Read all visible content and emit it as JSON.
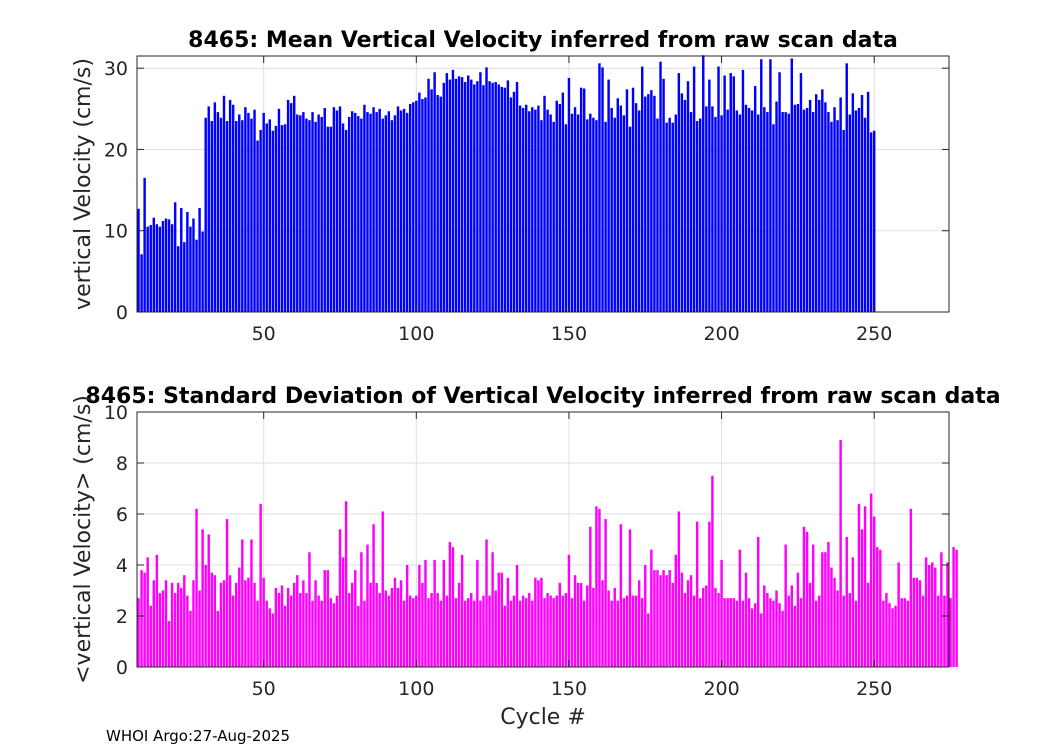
{
  "footer": "WHOI Argo:27-Aug-2025",
  "colors": {
    "mean_bar": "#0000ff",
    "std_bar": "#ff00ff",
    "grid": "#dfdfdf",
    "axis": "#262626"
  },
  "chart_data": [
    {
      "type": "bar",
      "title": "8465: Mean Vertical Velocity inferred from raw scan data",
      "xlabel": "",
      "ylabel": "vertical Velocity (cm/s)",
      "xlim": [
        8.5,
        274.5
      ],
      "ylim": [
        0,
        31.5
      ],
      "xticks": [
        50,
        100,
        150,
        200,
        250
      ],
      "yticks": [
        0,
        10,
        20,
        30
      ],
      "grid": true,
      "x_start": 9,
      "values": [
        12.7,
        7.1,
        16.5,
        10.5,
        10.7,
        11.6,
        10.8,
        10.5,
        11.2,
        11.5,
        11.4,
        10.8,
        13.5,
        8.1,
        12.8,
        8.6,
        12.3,
        10.5,
        11.5,
        8.9,
        12.8,
        9.9,
        23.9,
        25.3,
        23.5,
        25.8,
        24.6,
        23.9,
        26.6,
        23.5,
        26.1,
        25.5,
        23.5,
        24.3,
        23.6,
        25.2,
        24.5,
        23.8,
        24.9,
        21.1,
        22.4,
        24.5,
        23.2,
        23.7,
        22.3,
        22.9,
        25.0,
        23.0,
        23.1,
        26.1,
        25.7,
        26.6,
        24.3,
        24.2,
        24.6,
        23.8,
        23.6,
        24.6,
        23.4,
        24.3,
        24.0,
        25.1,
        22.8,
        22.8,
        25.2,
        24.8,
        25.3,
        23.2,
        22.4,
        24.0,
        24.7,
        24.5,
        24.1,
        23.8,
        25.5,
        24.6,
        24.4,
        25.2,
        24.6,
        25.0,
        23.8,
        24.2,
        24.7,
        23.6,
        24.2,
        25.3,
        24.8,
        25.0,
        24.5,
        25.6,
        25.8,
        26.0,
        27.0,
        26.2,
        26.4,
        28.7,
        27.4,
        29.5,
        26.7,
        26.5,
        28.2,
        29.4,
        28.6,
        29.8,
        28.7,
        29.0,
        28.9,
        28.3,
        29.1,
        28.6,
        28.0,
        28.4,
        29.5,
        27.9,
        30.1,
        28.4,
        28.2,
        28.3,
        28.0,
        27.7,
        27.6,
        28.5,
        26.4,
        27.1,
        28.3,
        25.4,
        25.1,
        25.5,
        24.7,
        25.2,
        24.9,
        25.4,
        23.6,
        26.6,
        24.9,
        24.3,
        23.4,
        26.0,
        25.6,
        27.0,
        23.1,
        28.8,
        24.4,
        25.2,
        24.3,
        27.6,
        27.5,
        23.7,
        24.4,
        23.9,
        23.6,
        30.6,
        30.1,
        23.4,
        28.6,
        25.1,
        23.9,
        26.3,
        25.4,
        24.2,
        27.4,
        22.8,
        27.6,
        25.7,
        24.8,
        30.2,
        26.5,
        26.8,
        27.3,
        26.6,
        23.8,
        30.8,
        28.7,
        23.3,
        23.9,
        23.3,
        24.3,
        29.4,
        26.9,
        26.1,
        28.4,
        24.6,
        30.2,
        23.5,
        23.8,
        31.6,
        25.3,
        28.6,
        25.3,
        24.0,
        30.2,
        24.2,
        29.1,
        24.9,
        29.4,
        29.0,
        24.8,
        24.3,
        29.8,
        25.5,
        25.1,
        24.8,
        27.8,
        24.3,
        31.1,
        25.2,
        24.6,
        31.1,
        23.1,
        25.9,
        29.5,
        24.6,
        24.6,
        24.4,
        31.2,
        25.5,
        25.6,
        29.4,
        24.9,
        25.1,
        26.1,
        24.6,
        26.8,
        26.1,
        27.4,
        25.8,
        24.6,
        23.4,
        25.2,
        23.6,
        26.4,
        22.4,
        30.6,
        24.3,
        26.9,
        24.8,
        25.1,
        26.7,
        23.9,
        27.1,
        22.1,
        22.3
      ]
    },
    {
      "type": "bar",
      "title": "8465: Standard Deviation of Vertical Velocity inferred from raw scan data",
      "xlabel": "Cycle #",
      "ylabel": "<vertical Velocity> (cm/s)",
      "xlim": [
        8.5,
        274.5
      ],
      "ylim": [
        0,
        10
      ],
      "xticks": [
        50,
        100,
        150,
        200,
        250
      ],
      "yticks": [
        0,
        2,
        4,
        6,
        8,
        10
      ],
      "grid": true,
      "x_start": 9,
      "values": [
        2.7,
        3.8,
        3.7,
        4.3,
        2.4,
        3.4,
        4.4,
        2.9,
        3.0,
        3.4,
        1.8,
        3.3,
        2.9,
        3.3,
        3.1,
        3.6,
        2.8,
        2.2,
        3.4,
        6.2,
        3.0,
        5.4,
        4.0,
        5.2,
        3.7,
        3.6,
        2.2,
        3.3,
        3.4,
        5.8,
        3.6,
        2.8,
        3.3,
        3.9,
        5.0,
        3.4,
        3.5,
        5.0,
        3.3,
        2.6,
        6.4,
        3.5,
        2.6,
        2.3,
        2.1,
        3.1,
        2.9,
        3.2,
        2.4,
        3.1,
        2.8,
        3.3,
        3.6,
        2.9,
        3.4,
        2.9,
        4.5,
        2.6,
        3.4,
        2.8,
        2.6,
        3.8,
        3.8,
        2.7,
        2.5,
        2.8,
        5.4,
        4.3,
        6.5,
        2.9,
        3.3,
        3.8,
        2.4,
        4.5,
        2.6,
        4.8,
        3.3,
        5.6,
        3.3,
        2.9,
        6.1,
        3.0,
        2.8,
        3.1,
        3.5,
        3.1,
        3.4,
        2.6,
        4.0,
        2.8,
        2.7,
        2.8,
        4.0,
        3.3,
        4.2,
        2.7,
        2.9,
        4.2,
        2.9,
        2.6,
        4.2,
        2.8,
        4.9,
        4.7,
        2.7,
        3.3,
        4.4,
        2.6,
        2.7,
        2.9,
        2.6,
        4.2,
        2.6,
        2.8,
        5.0,
        2.8,
        4.5,
        3.0,
        3.7,
        3.7,
        2.4,
        3.5,
        2.6,
        2.8,
        4.0,
        2.6,
        2.8,
        2.7,
        2.9,
        2.6,
        3.5,
        3.4,
        3.5,
        2.7,
        2.9,
        2.8,
        2.7,
        2.8,
        3.3,
        2.8,
        2.9,
        4.4,
        2.7,
        3.6,
        3.3,
        3.3,
        2.6,
        3.2,
        5.5,
        3.1,
        6.3,
        6.2,
        3.4,
        5.8,
        3.0,
        2.6,
        3.1,
        2.6,
        5.6,
        2.7,
        2.8,
        5.4,
        2.8,
        2.8,
        3.4,
        2.7,
        4.0,
        2.1,
        4.6,
        3.8,
        3.8,
        3.6,
        3.8,
        3.6,
        3.8,
        3.3,
        4.4,
        6.1,
        3.7,
        2.9,
        3.4,
        3.6,
        2.8,
        5.7,
        2.7,
        3.1,
        3.2,
        5.7,
        7.5,
        3.1,
        2.9,
        4.2,
        2.7,
        2.7,
        2.7,
        2.7,
        2.6,
        4.6,
        2.6,
        3.7,
        2.7,
        2.3,
        2.5,
        5.1,
        2.1,
        3.2,
        2.9,
        2.7,
        2.6,
        3.0,
        2.5,
        2.2,
        4.8,
        2.8,
        3.2,
        2.4,
        3.7,
        2.7,
        5.5,
        5.3,
        3.3,
        4.8,
        2.6,
        2.8,
        4.5,
        4.5,
        4.9,
        3.9,
        3.5,
        3.0,
        8.9,
        2.8,
        5.1,
        2.9,
        4.3,
        2.6,
        6.4,
        5.4,
        6.3,
        3.3,
        6.8,
        5.9,
        4.7,
        4.6,
        2.6,
        2.9,
        2.5,
        2.3,
        2.4,
        4.1,
        2.7,
        2.7,
        2.6,
        6.2,
        3.5,
        3.5,
        3.4,
        2.8,
        4.3,
        4.0,
        4.1,
        3.9,
        2.8,
        4.5,
        2.8,
        4.1,
        2.7,
        4.7,
        4.6
      ]
    }
  ]
}
